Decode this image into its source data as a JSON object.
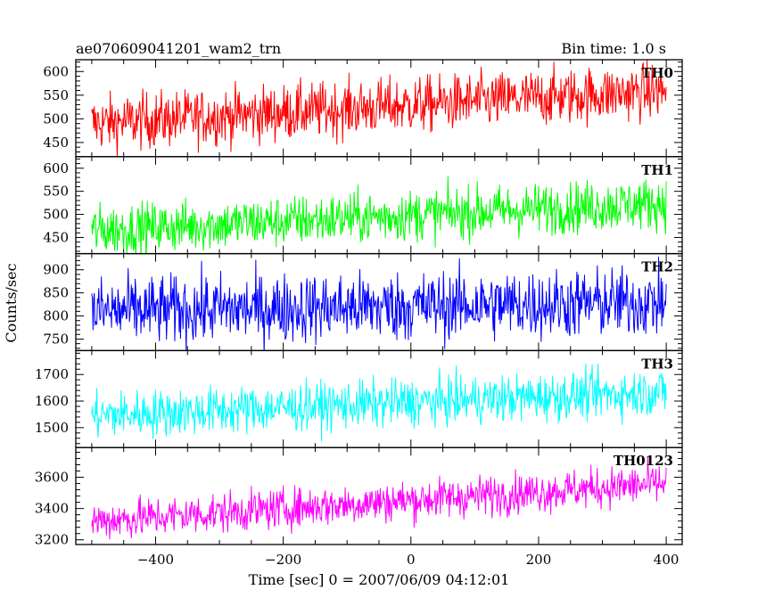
{
  "header": {
    "title": "ae070609041201_wam2_trn",
    "bin_time": "Bin time: 1.0 s"
  },
  "ylabel": "Counts/sec",
  "xlabel": "Time [sec] 0 = 2007/06/09 04:12:01",
  "chart_data": [
    {
      "type": "line",
      "name": "TH0",
      "color": "#ff0000",
      "x_range": [
        -500,
        400
      ],
      "mean_start": 490,
      "mean_end": 560,
      "noise": 30,
      "ylim": [
        420,
        625
      ],
      "yticks": [
        450,
        500,
        550,
        600
      ],
      "yticklabels": [
        "450",
        "500",
        "550",
        "600"
      ]
    },
    {
      "type": "line",
      "name": "TH1",
      "color": "#00ff00",
      "x_range": [
        -500,
        400
      ],
      "mean_start": 465,
      "mean_end": 525,
      "noise": 28,
      "ylim": [
        415,
        625
      ],
      "yticks": [
        450,
        500,
        550,
        600
      ],
      "yticklabels": [
        "450",
        "500",
        "550",
        "600"
      ]
    },
    {
      "type": "line",
      "name": "TH2",
      "color": "#0000ff",
      "x_range": [
        -500,
        400
      ],
      "mean_start": 810,
      "mean_end": 830,
      "noise": 38,
      "ylim": [
        725,
        935
      ],
      "yticks": [
        750,
        800,
        850,
        900
      ],
      "yticklabels": [
        "750",
        "800",
        "850",
        "900"
      ]
    },
    {
      "type": "line",
      "name": "TH3",
      "color": "#00ffff",
      "x_range": [
        -500,
        400
      ],
      "mean_start": 1545,
      "mean_end": 1635,
      "noise": 45,
      "ylim": [
        1425,
        1790
      ],
      "yticks": [
        1500,
        1600,
        1700
      ],
      "yticklabels": [
        "1500",
        "1600",
        "1700"
      ]
    },
    {
      "type": "line",
      "name": "TH0123",
      "color": "#ff00ff",
      "x_range": [
        -500,
        400
      ],
      "mean_start": 3320,
      "mean_end": 3560,
      "noise": 65,
      "ylim": [
        3170,
        3790
      ],
      "yticks": [
        3200,
        3400,
        3600
      ],
      "yticklabels": [
        "3200",
        "3400",
        "3600"
      ]
    }
  ],
  "xaxis": {
    "xlim": [
      -525,
      425
    ],
    "ticks": [
      -400,
      -200,
      0,
      200,
      400
    ],
    "ticklabels": [
      "−400",
      "−200",
      "0",
      "200",
      "400"
    ],
    "minor_step": 50
  }
}
